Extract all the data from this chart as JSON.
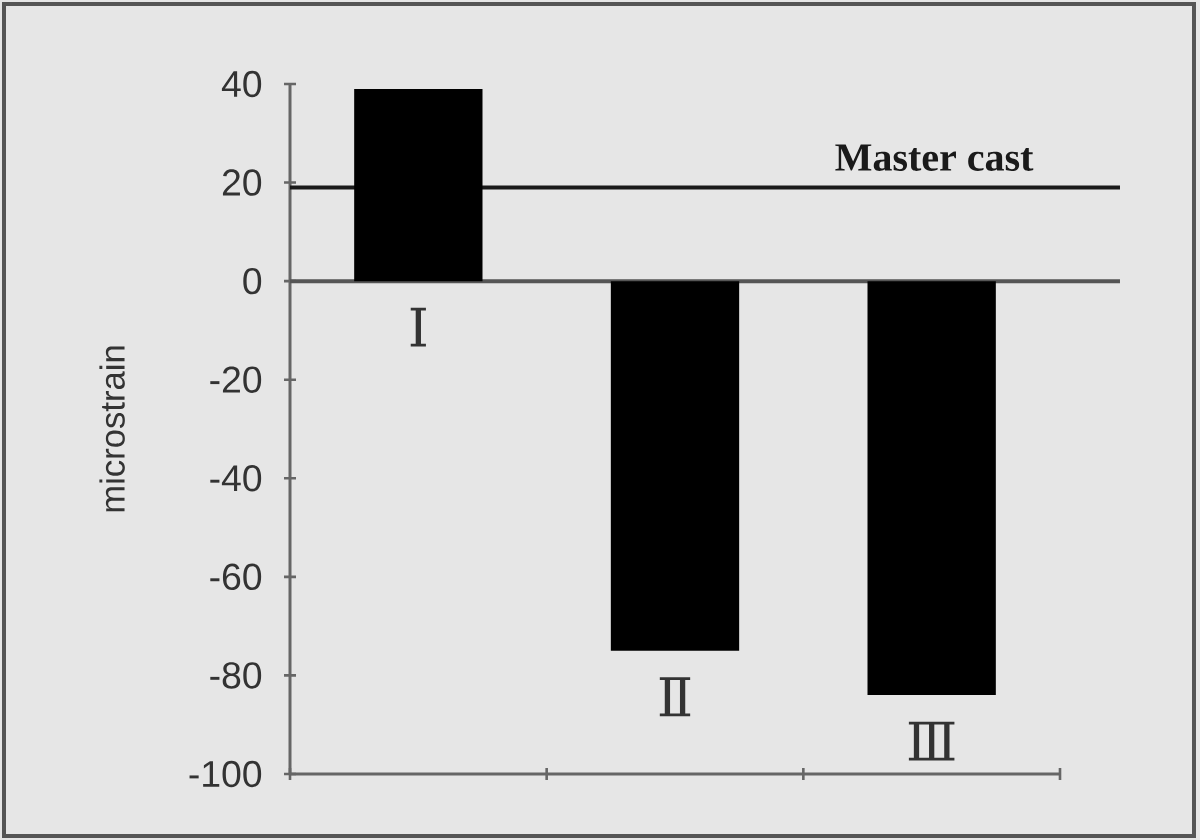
{
  "chart_data": {
    "type": "bar",
    "categories": [
      "Ⅰ",
      "Ⅱ",
      "Ⅲ"
    ],
    "values": [
      39,
      -75,
      -84
    ],
    "color": "#000000",
    "ylabel": "microstrain",
    "ylim": [
      -100,
      40
    ],
    "yticks": [
      -100,
      -80,
      -60,
      -40,
      -20,
      0,
      20,
      40
    ],
    "ref_lines": [
      {
        "axis": "y",
        "value": 0,
        "color": "#555555"
      },
      {
        "axis": "y",
        "value": 19,
        "label": "Master cast",
        "color": "#1a1a1a"
      }
    ]
  }
}
